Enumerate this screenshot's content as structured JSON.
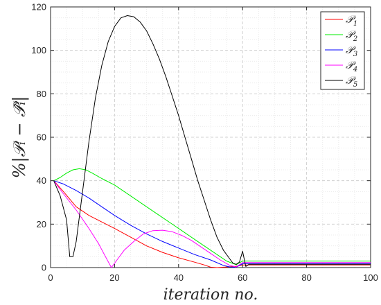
{
  "chart_data": {
    "type": "line",
    "xlabel": "iteration no.",
    "ylabel": "%|𝒫ᵢ − 𝒫̂ᵢ|",
    "xlim": [
      0,
      100
    ],
    "ylim": [
      0,
      120
    ],
    "xticks": [
      0,
      20,
      40,
      60,
      80,
      100
    ],
    "yticks": [
      0,
      20,
      40,
      60,
      80,
      100,
      120
    ],
    "grid": "on (major dashed, minor dotted)",
    "legend_position": "top-right",
    "series": [
      {
        "name": "𝒫₁",
        "legend_main": "𝒫",
        "legend_sub": "1",
        "color": "#ff0000",
        "points": [
          [
            1,
            40
          ],
          [
            4,
            35
          ],
          [
            8,
            28
          ],
          [
            12,
            24
          ],
          [
            16,
            21
          ],
          [
            20,
            18
          ],
          [
            25,
            14
          ],
          [
            30,
            10
          ],
          [
            35,
            7
          ],
          [
            40,
            4.5
          ],
          [
            45,
            2.5
          ],
          [
            48,
            1.2
          ],
          [
            50,
            0.2
          ],
          [
            52,
            0
          ],
          [
            55,
            0.3
          ],
          [
            58,
            0.6
          ],
          [
            60,
            1.2
          ],
          [
            62,
            1.2
          ],
          [
            100,
            1.2
          ]
        ]
      },
      {
        "name": "𝒫₂",
        "legend_main": "𝒫",
        "legend_sub": "2",
        "color": "#00ee00",
        "points": [
          [
            1,
            40
          ],
          [
            3,
            41.5
          ],
          [
            5,
            43.5
          ],
          [
            7,
            45
          ],
          [
            9,
            45.5
          ],
          [
            11,
            45
          ],
          [
            13,
            43.5
          ],
          [
            16,
            41
          ],
          [
            20,
            38
          ],
          [
            25,
            33
          ],
          [
            30,
            28
          ],
          [
            35,
            23
          ],
          [
            40,
            18
          ],
          [
            45,
            13
          ],
          [
            50,
            8
          ],
          [
            55,
            3
          ],
          [
            58,
            1.3
          ],
          [
            60,
            3
          ],
          [
            62,
            3
          ],
          [
            100,
            3
          ]
        ]
      },
      {
        "name": "𝒫₃",
        "legend_main": "𝒫",
        "legend_sub": "3",
        "color": "#0000ff",
        "points": [
          [
            1,
            40
          ],
          [
            4,
            38.5
          ],
          [
            8,
            35.5
          ],
          [
            12,
            32
          ],
          [
            16,
            28
          ],
          [
            20,
            24
          ],
          [
            25,
            19.5
          ],
          [
            30,
            15.5
          ],
          [
            35,
            12
          ],
          [
            40,
            9
          ],
          [
            45,
            6
          ],
          [
            50,
            3.5
          ],
          [
            54,
            1
          ],
          [
            56,
            0.3
          ],
          [
            58,
            0.2
          ],
          [
            60,
            1.8
          ],
          [
            62,
            1.8
          ],
          [
            100,
            1.8
          ]
        ]
      },
      {
        "name": "𝒫₄",
        "legend_main": "𝒫",
        "legend_sub": "4",
        "color": "#ff00ff",
        "points": [
          [
            1,
            40
          ],
          [
            4,
            34
          ],
          [
            8,
            26.5
          ],
          [
            12,
            18
          ],
          [
            15,
            11
          ],
          [
            17,
            5.5
          ],
          [
            19,
            0
          ],
          [
            21,
            4
          ],
          [
            23,
            8
          ],
          [
            26,
            12
          ],
          [
            29,
            15.5
          ],
          [
            32,
            17
          ],
          [
            35,
            17.2
          ],
          [
            38,
            16.5
          ],
          [
            41,
            14.8
          ],
          [
            44,
            12.5
          ],
          [
            47,
            9.5
          ],
          [
            50,
            6.5
          ],
          [
            53,
            3.5
          ],
          [
            56,
            1
          ],
          [
            58,
            0.3
          ],
          [
            60,
            2.3
          ],
          [
            62,
            2.3
          ],
          [
            100,
            2.3
          ]
        ]
      },
      {
        "name": "𝒫₅",
        "legend_main": "𝒫",
        "legend_sub": "5",
        "color": "#000000",
        "points": [
          [
            1,
            40
          ],
          [
            3,
            33
          ],
          [
            5,
            22
          ],
          [
            6,
            5
          ],
          [
            7,
            5
          ],
          [
            8,
            12
          ],
          [
            10,
            35
          ],
          [
            12,
            58
          ],
          [
            14,
            78
          ],
          [
            16,
            93
          ],
          [
            18,
            104
          ],
          [
            20,
            111
          ],
          [
            22,
            115
          ],
          [
            24,
            116
          ],
          [
            26,
            115.5
          ],
          [
            28,
            113
          ],
          [
            30,
            109
          ],
          [
            32,
            103
          ],
          [
            34,
            96
          ],
          [
            36,
            88
          ],
          [
            38,
            79
          ],
          [
            40,
            70
          ],
          [
            42,
            60
          ],
          [
            44,
            50
          ],
          [
            46,
            40
          ],
          [
            48,
            31
          ],
          [
            50,
            22
          ],
          [
            52,
            14
          ],
          [
            54,
            8
          ],
          [
            56,
            4
          ],
          [
            57,
            2
          ],
          [
            58,
            1.5
          ],
          [
            59,
            2.5
          ],
          [
            60,
            7.5
          ],
          [
            61,
            0.5
          ],
          [
            62,
            1.5
          ],
          [
            100,
            1.5
          ]
        ]
      }
    ]
  }
}
